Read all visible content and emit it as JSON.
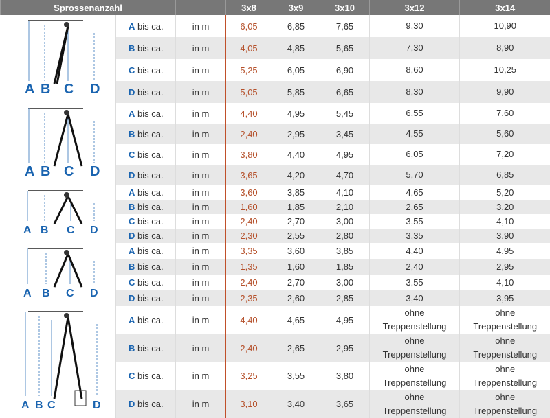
{
  "header": {
    "title": "Sprossenanzahl",
    "columns": [
      "3x8",
      "3x9",
      "3x10",
      "3x12",
      "3x14"
    ]
  },
  "groups": [
    {
      "image_labels": [
        "A",
        "B",
        "C",
        "D"
      ],
      "rows": [
        {
          "letter": "A",
          "label": "bis ca.",
          "unit": "in m",
          "values": [
            "6,05",
            "6,85",
            "7,65",
            "9,30",
            "10,90"
          ]
        },
        {
          "letter": "B",
          "label": "bis ca.",
          "unit": "in m",
          "values": [
            "4,05",
            "4,85",
            "5,65",
            "7,30",
            "8,90"
          ]
        },
        {
          "letter": "C",
          "label": "bis ca.",
          "unit": "in m",
          "values": [
            "5,25",
            "6,05",
            "6,90",
            "8,60",
            "10,25"
          ]
        },
        {
          "letter": "D",
          "label": "bis ca.",
          "unit": "in m",
          "values": [
            "5,05",
            "5,85",
            "6,65",
            "8,30",
            "9,90"
          ]
        }
      ]
    },
    {
      "image_labels": [
        "A",
        "B",
        "C",
        "D"
      ],
      "rows": [
        {
          "letter": "A",
          "label": "bis ca.",
          "unit": "in m",
          "values": [
            "4,40",
            "4,95",
            "5,45",
            "6,55",
            "7,60"
          ]
        },
        {
          "letter": "B",
          "label": "bis ca.",
          "unit": "in m",
          "values": [
            "2,40",
            "2,95",
            "3,45",
            "4,55",
            "5,60"
          ]
        },
        {
          "letter": "C",
          "label": "bis ca.",
          "unit": "in m",
          "values": [
            "3,80",
            "4,40",
            "4,95",
            "6,05",
            "7,20"
          ]
        },
        {
          "letter": "D",
          "label": "bis ca.",
          "unit": "in m",
          "values": [
            "3,65",
            "4,20",
            "4,70",
            "5,70",
            "6,85"
          ]
        }
      ]
    },
    {
      "image_labels": [
        "A",
        "B",
        "C",
        "D"
      ],
      "rows": [
        {
          "letter": "A",
          "label": "bis ca.",
          "unit": "in m",
          "values": [
            "3,60",
            "3,85",
            "4,10",
            "4,65",
            "5,20"
          ]
        },
        {
          "letter": "B",
          "label": "bis ca.",
          "unit": "in m",
          "values": [
            "1,60",
            "1,85",
            "2,10",
            "2,65",
            "3,20"
          ]
        },
        {
          "letter": "C",
          "label": "bis ca.",
          "unit": "in m",
          "values": [
            "2,40",
            "2,70",
            "3,00",
            "3,55",
            "4,10"
          ]
        },
        {
          "letter": "D",
          "label": "bis ca.",
          "unit": "in m",
          "values": [
            "2,30",
            "2,55",
            "2,80",
            "3,35",
            "3,90"
          ]
        }
      ]
    },
    {
      "image_labels": [
        "A",
        "B",
        "C",
        "D"
      ],
      "rows": [
        {
          "letter": "A",
          "label": "bis ca.",
          "unit": "in m",
          "values": [
            "3,35",
            "3,60",
            "3,85",
            "4,40",
            "4,95"
          ]
        },
        {
          "letter": "B",
          "label": "bis ca.",
          "unit": "in m",
          "values": [
            "1,35",
            "1,60",
            "1,85",
            "2,40",
            "2,95"
          ]
        },
        {
          "letter": "C",
          "label": "bis ca.",
          "unit": "in m",
          "values": [
            "2,40",
            "2,70",
            "3,00",
            "3,55",
            "4,10"
          ]
        },
        {
          "letter": "D",
          "label": "bis ca.",
          "unit": "in m",
          "values": [
            "2,35",
            "2,60",
            "2,85",
            "3,40",
            "3,95"
          ]
        }
      ]
    },
    {
      "image_labels": [
        "A",
        "B",
        "C",
        "D"
      ],
      "rows": [
        {
          "letter": "A",
          "label": "bis ca.",
          "unit": "in m",
          "values": [
            "4,40",
            "4,65",
            "4,95",
            "ohne Treppenstellung",
            "ohne Treppenstellung"
          ]
        },
        {
          "letter": "B",
          "label": "bis ca.",
          "unit": "in m",
          "values": [
            "2,40",
            "2,65",
            "2,95",
            "ohne Treppenstellung",
            "ohne Treppenstellung"
          ]
        },
        {
          "letter": "C",
          "label": "bis ca.",
          "unit": "in m",
          "values": [
            "3,25",
            "3,55",
            "3,80",
            "ohne Treppenstellung",
            "ohne Treppenstellung"
          ]
        },
        {
          "letter": "D",
          "label": "bis ca.",
          "unit": "in m",
          "values": [
            "3,10",
            "3,40",
            "3,65",
            "ohne Treppenstellung",
            "ohne Treppenstellung"
          ]
        }
      ]
    }
  ]
}
